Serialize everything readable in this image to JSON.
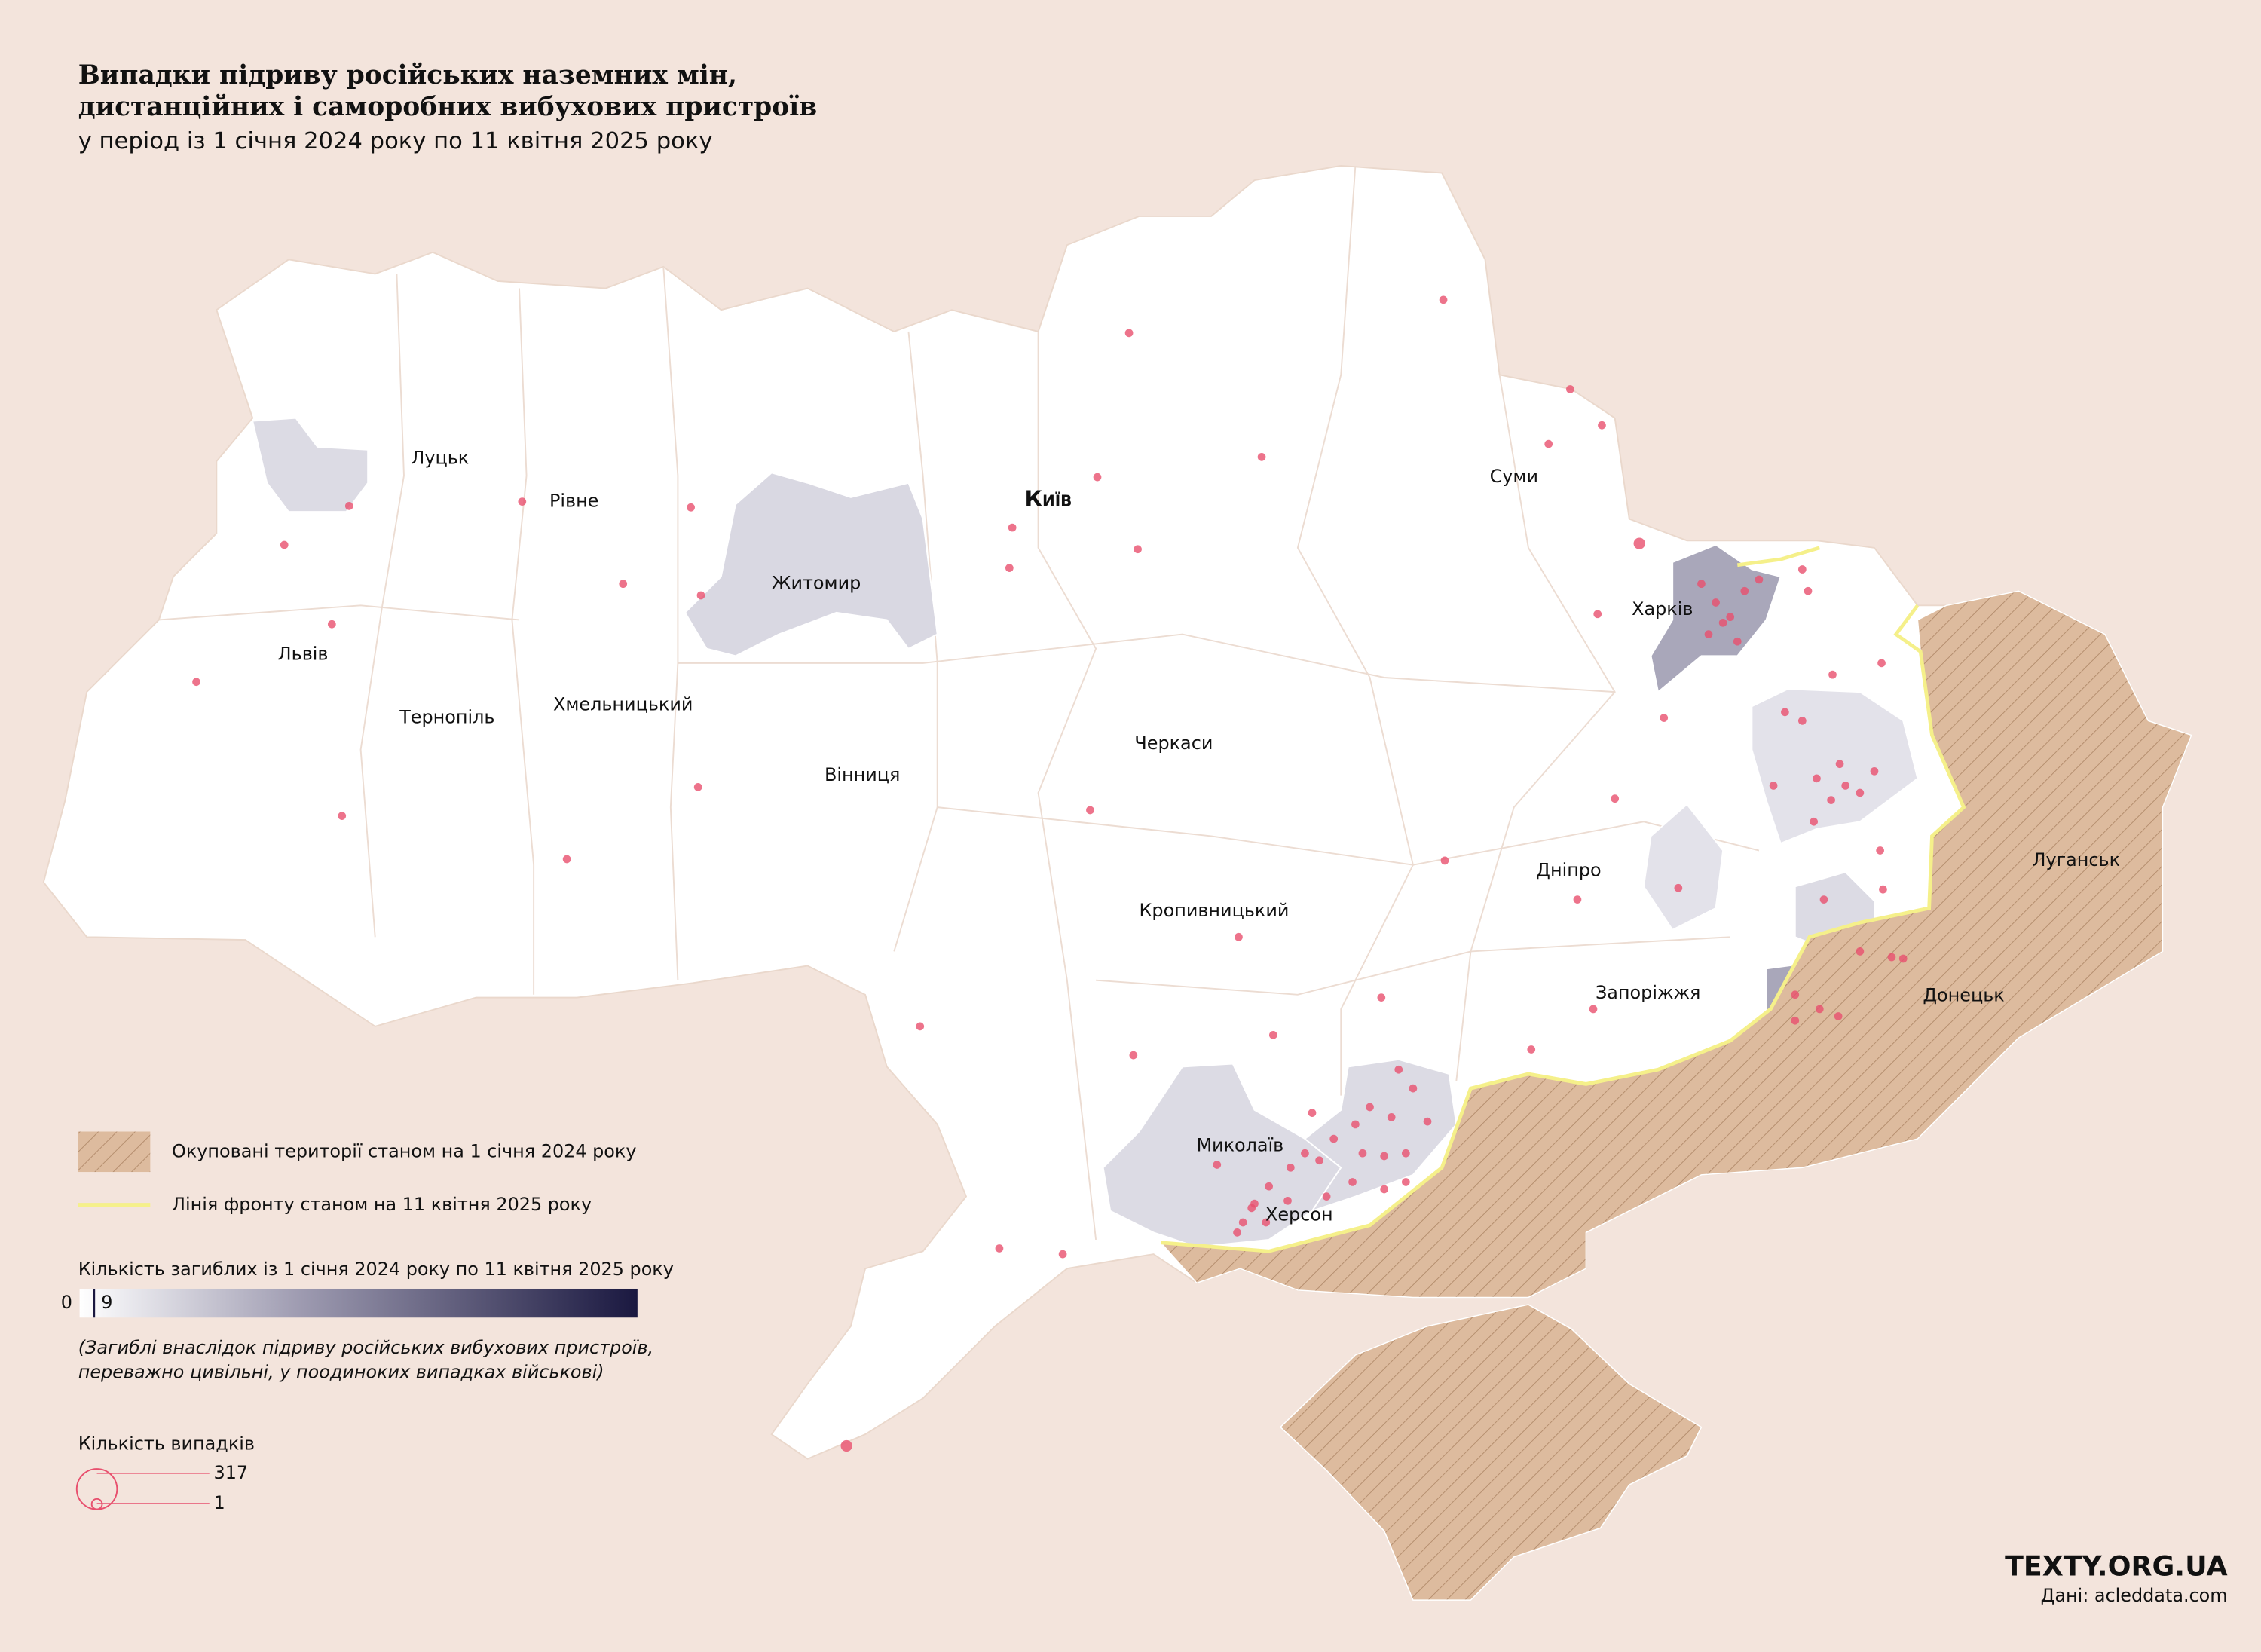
{
  "header": {
    "title": [
      "Випадки підриву російських наземних мін,",
      "дистанційних і саморобних вибухових пристроїв"
    ],
    "subtitle": "у період із 1 січня 2024 року по 11 квітня 2025 року"
  },
  "map": {
    "labels": [
      "Луцьк",
      "Рівне",
      "Житомир",
      "Київ",
      "Суми",
      "Харків",
      "Львів",
      "Тернопіль",
      "Хмельницький",
      "Вінниця",
      "Черкаси",
      "Дніпро",
      "Кропивницький",
      "Запоріжжя",
      "Луганськ",
      "Донецьк",
      "Миколаїв",
      "Херсон"
    ]
  },
  "legend": {
    "occupied": "Окуповані території станом на 1 січня 2024 року",
    "front_line": "Лінія фронту станом на 11 квітня 2025 року",
    "deaths": {
      "title": "Кількість загиблих із 1 січня 2024 року по 11 квітня 2025 року",
      "ticks": [
        0,
        9
      ],
      "note": [
        "(Загиблі внаслідок підриву російських вибухових пристроїв,",
        "переважно цивільні, у поодиноких випадках військові)"
      ]
    },
    "cases": {
      "title": "Кількість випадків",
      "ticks": [
        317,
        1
      ]
    }
  },
  "footer": {
    "brand": "TEXTY.ORG.UA",
    "source": "Дані: acleddata.com"
  }
}
